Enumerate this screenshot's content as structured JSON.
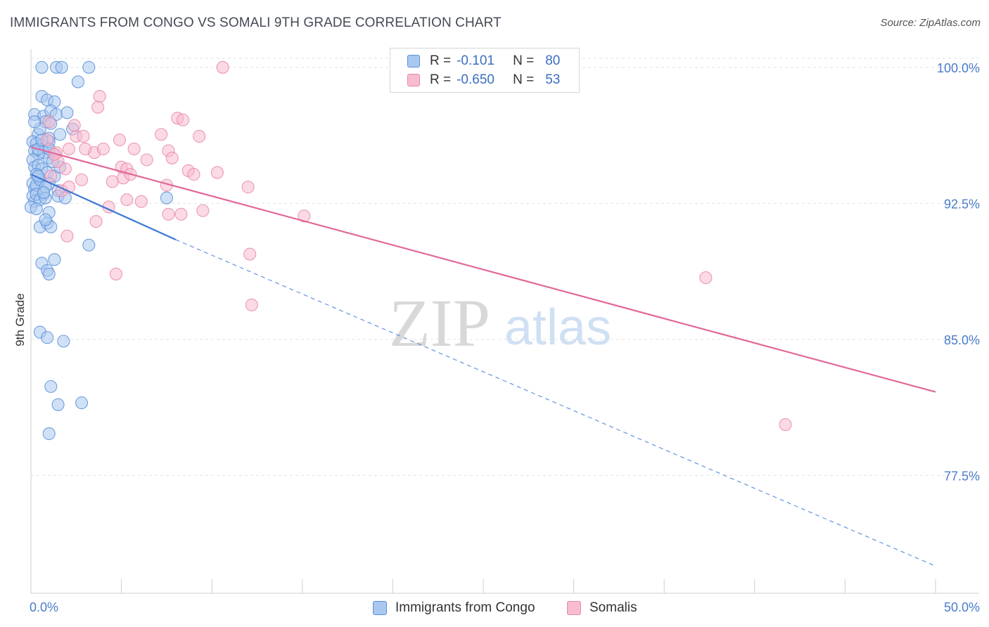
{
  "title": "IMMIGRANTS FROM CONGO VS SOMALI 9TH GRADE CORRELATION CHART",
  "source": "Source: ZipAtlas.com",
  "watermark": {
    "zip": "ZIP",
    "atlas": "atlas"
  },
  "stats": [
    {
      "r_label": "R =",
      "r_value": "-0.101",
      "n_label": "N =",
      "n_value": "80"
    },
    {
      "r_label": "R =",
      "r_value": "-0.650",
      "n_label": "N =",
      "n_value": "53"
    }
  ],
  "legend": [
    "Immigrants from Congo",
    "Somalis"
  ],
  "colors": {
    "congo_fill": "#a9c8f0",
    "congo_stroke": "#5a90d8",
    "congo_line": "#3b78d8",
    "somali_fill": "#f7bcd0",
    "somali_stroke": "#e889a9",
    "somali_line": "#e2689a",
    "tick_text": "#4a7cc9",
    "grid": "#e3e3e3"
  },
  "chart_data": {
    "type": "scatter",
    "title": "IMMIGRANTS FROM CONGO VS SOMALI 9TH GRADE CORRELATION CHART",
    "xlabel": "",
    "ylabel": "9th Grade",
    "xlim": [
      0,
      50
    ],
    "ylim": [
      71.0,
      101.0
    ],
    "x_tick_labels": [
      {
        "value": 0,
        "label": "0.0%"
      },
      {
        "value": 50,
        "label": "50.0%"
      }
    ],
    "x_minor_ticks": [
      0,
      5,
      10,
      15,
      20,
      25,
      30,
      35,
      40,
      45,
      50
    ],
    "y_ticks": [
      {
        "value": 100.0,
        "label": "100.0%"
      },
      {
        "value": 92.5,
        "label": "92.5%"
      },
      {
        "value": 85.0,
        "label": "85.0%"
      },
      {
        "value": 77.5,
        "label": "77.5%"
      }
    ],
    "grid": true,
    "legend_position": "bottom-center",
    "series": [
      {
        "name": "Immigrants from Congo",
        "points": [
          [
            0.6,
            100.0
          ],
          [
            1.4,
            100.0
          ],
          [
            1.7,
            100.0
          ],
          [
            3.2,
            100.0
          ],
          [
            2.6,
            99.2
          ],
          [
            0.6,
            98.4
          ],
          [
            0.9,
            98.2
          ],
          [
            1.3,
            98.1
          ],
          [
            0.2,
            97.4
          ],
          [
            0.7,
            97.3
          ],
          [
            1.1,
            97.6
          ],
          [
            1.4,
            97.4
          ],
          [
            2.0,
            97.5
          ],
          [
            0.8,
            97.0
          ],
          [
            2.3,
            96.6
          ],
          [
            0.4,
            96.3
          ],
          [
            1.0,
            96.1
          ],
          [
            1.6,
            96.3
          ],
          [
            0.1,
            95.9
          ],
          [
            0.3,
            95.8
          ],
          [
            0.6,
            95.7
          ],
          [
            0.8,
            95.6
          ],
          [
            1.0,
            95.9
          ],
          [
            0.2,
            95.4
          ],
          [
            0.4,
            95.2
          ],
          [
            0.7,
            95.3
          ],
          [
            1.0,
            95.0
          ],
          [
            1.3,
            95.2
          ],
          [
            0.1,
            94.9
          ],
          [
            0.2,
            94.5
          ],
          [
            0.4,
            94.6
          ],
          [
            0.6,
            94.4
          ],
          [
            0.9,
            94.2
          ],
          [
            1.3,
            94.0
          ],
          [
            1.6,
            94.5
          ],
          [
            0.1,
            93.6
          ],
          [
            0.2,
            93.3
          ],
          [
            0.3,
            93.5
          ],
          [
            0.5,
            93.8
          ],
          [
            0.7,
            93.0
          ],
          [
            1.0,
            93.6
          ],
          [
            1.5,
            93.2
          ],
          [
            0.1,
            92.9
          ],
          [
            0.2,
            92.6
          ],
          [
            0.3,
            93.0
          ],
          [
            0.5,
            92.7
          ],
          [
            0.8,
            92.8
          ],
          [
            1.5,
            92.9
          ],
          [
            7.5,
            92.8
          ],
          [
            0.0,
            92.3
          ],
          [
            1.0,
            92.0
          ],
          [
            0.5,
            91.2
          ],
          [
            0.9,
            91.4
          ],
          [
            1.1,
            91.2
          ],
          [
            0.8,
            91.6
          ],
          [
            3.2,
            90.2
          ],
          [
            0.6,
            89.2
          ],
          [
            0.9,
            88.8
          ],
          [
            1.3,
            89.4
          ],
          [
            1.0,
            88.6
          ],
          [
            0.5,
            85.4
          ],
          [
            0.9,
            85.1
          ],
          [
            1.8,
            84.9
          ],
          [
            1.1,
            82.4
          ],
          [
            1.5,
            81.4
          ],
          [
            2.8,
            81.5
          ],
          [
            1.0,
            79.8
          ],
          [
            0.3,
            94.1
          ],
          [
            0.4,
            95.5
          ],
          [
            0.6,
            96.0
          ],
          [
            0.8,
            93.4
          ],
          [
            1.2,
            94.8
          ],
          [
            0.3,
            92.2
          ],
          [
            0.5,
            96.6
          ],
          [
            0.2,
            97.0
          ],
          [
            1.0,
            95.5
          ],
          [
            0.7,
            93.1
          ],
          [
            1.9,
            92.8
          ],
          [
            0.4,
            94.0
          ],
          [
            1.1,
            96.9
          ]
        ],
        "trend": {
          "x1": 0.0,
          "y1": 94.1,
          "x2": 8.0,
          "y2": 90.5,
          "extend_to_x": 50.0,
          "extend_to_y": 72.5
        }
      },
      {
        "name": "Somalis",
        "points": [
          [
            10.6,
            100.0
          ],
          [
            3.8,
            98.4
          ],
          [
            3.7,
            97.8
          ],
          [
            8.1,
            97.2
          ],
          [
            8.4,
            97.1
          ],
          [
            9.3,
            96.2
          ],
          [
            1.0,
            97.0
          ],
          [
            2.5,
            96.2
          ],
          [
            2.9,
            96.2
          ],
          [
            7.2,
            96.3
          ],
          [
            3.5,
            95.3
          ],
          [
            4.0,
            95.5
          ],
          [
            5.7,
            95.5
          ],
          [
            7.6,
            95.4
          ],
          [
            7.8,
            95.0
          ],
          [
            2.1,
            95.5
          ],
          [
            1.4,
            95.3
          ],
          [
            3.0,
            95.5
          ],
          [
            1.5,
            94.8
          ],
          [
            1.9,
            94.4
          ],
          [
            5.0,
            94.5
          ],
          [
            5.3,
            94.4
          ],
          [
            8.7,
            94.3
          ],
          [
            9.0,
            94.1
          ],
          [
            10.3,
            94.2
          ],
          [
            4.5,
            93.7
          ],
          [
            5.1,
            93.9
          ],
          [
            5.5,
            94.1
          ],
          [
            2.8,
            93.8
          ],
          [
            7.5,
            93.5
          ],
          [
            12.0,
            93.4
          ],
          [
            1.7,
            93.2
          ],
          [
            5.3,
            92.7
          ],
          [
            6.1,
            92.6
          ],
          [
            4.3,
            92.3
          ],
          [
            7.6,
            91.9
          ],
          [
            8.3,
            91.9
          ],
          [
            9.5,
            92.1
          ],
          [
            3.6,
            91.5
          ],
          [
            15.1,
            91.8
          ],
          [
            2.0,
            90.7
          ],
          [
            12.1,
            89.7
          ],
          [
            4.7,
            88.6
          ],
          [
            37.3,
            88.4
          ],
          [
            12.2,
            86.9
          ],
          [
            41.7,
            80.3
          ],
          [
            1.3,
            95.2
          ],
          [
            2.4,
            96.8
          ],
          [
            4.9,
            96.0
          ],
          [
            6.4,
            94.9
          ],
          [
            1.1,
            94.0
          ],
          [
            2.1,
            93.4
          ],
          [
            0.9,
            96.0
          ]
        ],
        "trend": {
          "x1": 0.0,
          "y1": 95.6,
          "x2": 50.0,
          "y2": 82.1
        }
      }
    ]
  }
}
